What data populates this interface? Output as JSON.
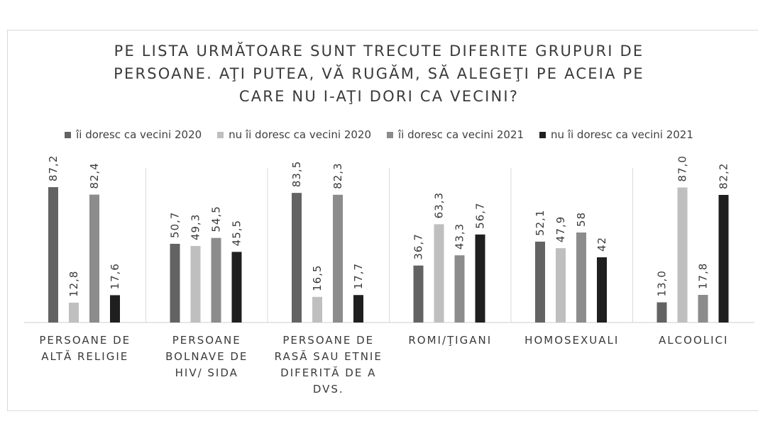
{
  "chart_data": {
    "type": "bar",
    "title_lines": [
      "PE LISTA URMĂTOARE SUNT TRECUTE DIFERITE GRUPURI DE",
      "PERSOANE. AŢI PUTEA, VĂ RUGĂM, SĂ ALEGEŢI PE ACEIA PE",
      "CARE NU I-AŢI DORI CA VECINI?"
    ],
    "categories": [
      [
        "PERSOANE DE",
        "ALTĂ RELIGIE"
      ],
      [
        "PERSOANE",
        "BOLNAVE DE",
        "HIV/ SIDA"
      ],
      [
        "PERSOANE DE",
        "RASĂ SAU ETNIE",
        "DIFERITĂ DE A",
        "DVS."
      ],
      [
        "ROMI/ŢIGANI"
      ],
      [
        "HOMOSEXUALI"
      ],
      [
        "ALCOOLICI"
      ]
    ],
    "series": [
      {
        "name": "îi doresc ca vecini 2020",
        "color": "#636363",
        "values": [
          87.2,
          50.7,
          83.5,
          36.7,
          52.1,
          13.0
        ],
        "labels": [
          "87,2",
          "50,7",
          "83,5",
          "36,7",
          "52,1",
          "13,0"
        ]
      },
      {
        "name": "nu îi doresc ca vecini 2020",
        "color": "#bfbfbf",
        "values": [
          12.8,
          49.3,
          16.5,
          63.3,
          47.9,
          87.0
        ],
        "labels": [
          "12,8",
          "49,3",
          "16,5",
          "63,3",
          "47,9",
          "87,0"
        ]
      },
      {
        "name": "îi doresc ca vecini 2021",
        "color": "#8c8c8c",
        "values": [
          82.4,
          54.5,
          82.3,
          43.3,
          58,
          17.8
        ],
        "labels": [
          "82,4",
          "54,5",
          "82,3",
          "43,3",
          "58",
          "17,8"
        ]
      },
      {
        "name": "nu îi doresc ca vecini 2021",
        "color": "#1f1f1f",
        "values": [
          17.6,
          45.5,
          17.7,
          56.7,
          42,
          82.2
        ],
        "labels": [
          "17,6",
          "45,5",
          "17,7",
          "56,7",
          "42",
          "82,2"
        ]
      }
    ],
    "ylim": [
      0,
      100
    ],
    "grid": false,
    "legend_position": "top"
  }
}
